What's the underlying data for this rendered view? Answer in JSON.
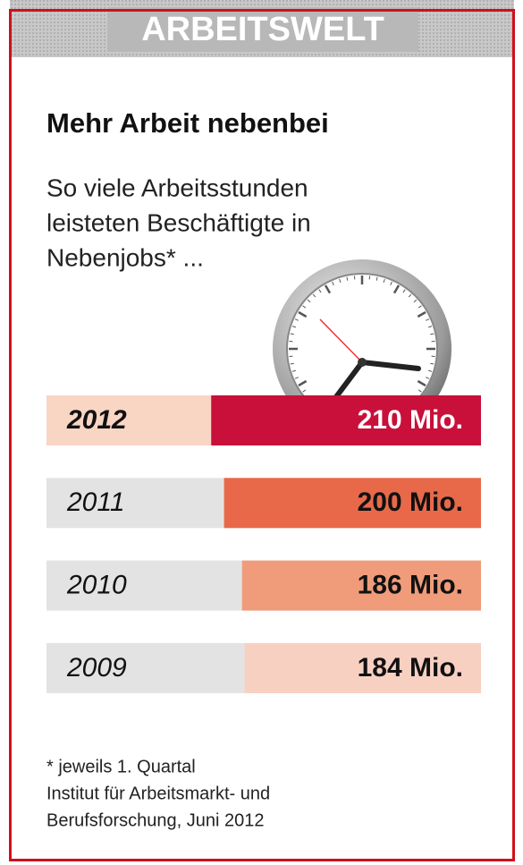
{
  "chart_data": {
    "type": "bar",
    "header": "ARBEITSWELT",
    "title": "Mehr Arbeit nebenbei",
    "subtitle": [
      "So viele Arbeitsstunden",
      "leisteten Beschäftigte in",
      "Nebenjobs* ..."
    ],
    "categories": [
      "2012",
      "2011",
      "2010",
      "2009"
    ],
    "values": [
      210,
      200,
      186,
      184
    ],
    "value_labels": [
      "210 Mio.",
      "200 Mio.",
      "186 Mio.",
      "184 Mio."
    ],
    "colors": [
      "#c8103a",
      "#e8694a",
      "#f09c7a",
      "#f8d0c2"
    ],
    "notes": [
      "* jeweils 1. Quartal",
      "Institut für Arbeitsmarkt- und",
      "Berufsforschung, Juni 2012"
    ]
  }
}
